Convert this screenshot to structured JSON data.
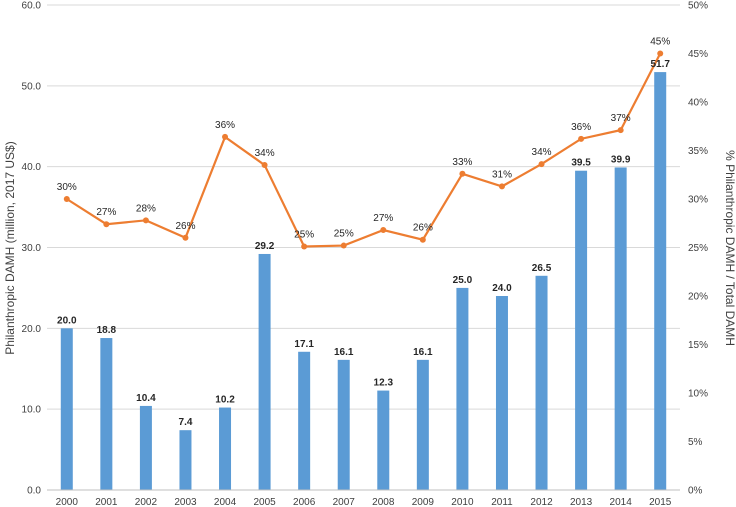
{
  "chart_data": {
    "type": "bar",
    "categories": [
      "2000",
      "2001",
      "2002",
      "2003",
      "2004",
      "2005",
      "2006",
      "2007",
      "2008",
      "2009",
      "2010",
      "2011",
      "2012",
      "2013",
      "2014",
      "2015"
    ],
    "series": [
      {
        "values": [
          20.0,
          18.8,
          10.4,
          7.4,
          10.2,
          29.2,
          17.1,
          16.1,
          12.3,
          16.1,
          25.0,
          24.0,
          26.5,
          39.5,
          39.9,
          51.7
        ],
        "labels": [
          "20.0",
          "18.8",
          "10.4",
          "7.4",
          "10.2",
          "29.2",
          "17.1",
          "16.1",
          "12.3",
          "16.1",
          "25.0",
          "24.0",
          "26.5",
          "39.5",
          "39.9",
          "51.7"
        ],
        "type": "bar",
        "axis": "left",
        "color": "#5B9BD5"
      },
      {
        "values": [
          30,
          27.4,
          27.8,
          26,
          36.4,
          33.5,
          25.1,
          25.2,
          26.8,
          25.8,
          32.6,
          31.3,
          33.6,
          36.2,
          37.1,
          45
        ],
        "labels": [
          "30%",
          "27%",
          "28%",
          "26%",
          "36%",
          "34%",
          "25%",
          "25%",
          "27%",
          "26%",
          "33%",
          "31%",
          "34%",
          "36%",
          "37%",
          "45%"
        ],
        "type": "line",
        "axis": "right",
        "color": "#ED7D31"
      }
    ],
    "ylabel": "Philanthropic DAMH (million, 2017 US$)",
    "y2label": "% Philanthropic DAMH / Total DAMH",
    "ylim": [
      0,
      60
    ],
    "y2lim": [
      0,
      50
    ],
    "yticks": [
      "0.0",
      "10.0",
      "20.0",
      "30.0",
      "40.0",
      "50.0",
      "60.0"
    ],
    "y2ticks": [
      "0%",
      "5%",
      "10%",
      "15%",
      "20%",
      "25%",
      "30%",
      "35%",
      "40%",
      "45%",
      "50%"
    ],
    "grid": true,
    "legend": "none"
  }
}
